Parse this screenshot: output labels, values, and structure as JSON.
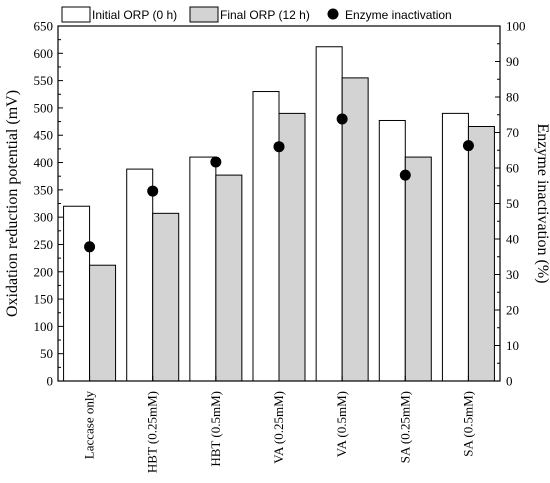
{
  "chart_data": {
    "type": "bar",
    "categories": [
      "Laccase only",
      "HBT (0.25mM)",
      "HBT (0.5mM)",
      "VA (0.25mM)",
      "VA (0.5mM)",
      "SA (0.25mM)",
      "SA (0.5mM)"
    ],
    "series": [
      {
        "name": "Initial ORP (0 h)",
        "type": "bar",
        "axis": "left",
        "color": "#ffffff",
        "values": [
          320,
          388,
          410,
          530,
          612,
          477,
          490
        ]
      },
      {
        "name": "Final ORP (12 h)",
        "type": "bar",
        "axis": "left",
        "color": "#d3d3d3",
        "values": [
          212,
          307,
          377,
          490,
          555,
          410,
          466
        ]
      },
      {
        "name": "Enzyme inactivation",
        "type": "scatter",
        "axis": "right",
        "color": "#000000",
        "values": [
          37.8,
          53.5,
          61.7,
          66.0,
          73.8,
          58.0,
          66.3
        ]
      }
    ],
    "ylabel": "Oxidation reduction potential (mV)",
    "y2label": "Enzyme inactivation (%)",
    "ylim": [
      0,
      650
    ],
    "yticks": [
      0,
      50,
      100,
      150,
      200,
      250,
      300,
      350,
      400,
      450,
      500,
      550,
      600,
      650
    ],
    "y2lim": [
      0,
      100
    ],
    "y2ticks": [
      0,
      10,
      20,
      30,
      40,
      50,
      60,
      70,
      80,
      90,
      100
    ],
    "legend_position": "top",
    "grid": false
  }
}
